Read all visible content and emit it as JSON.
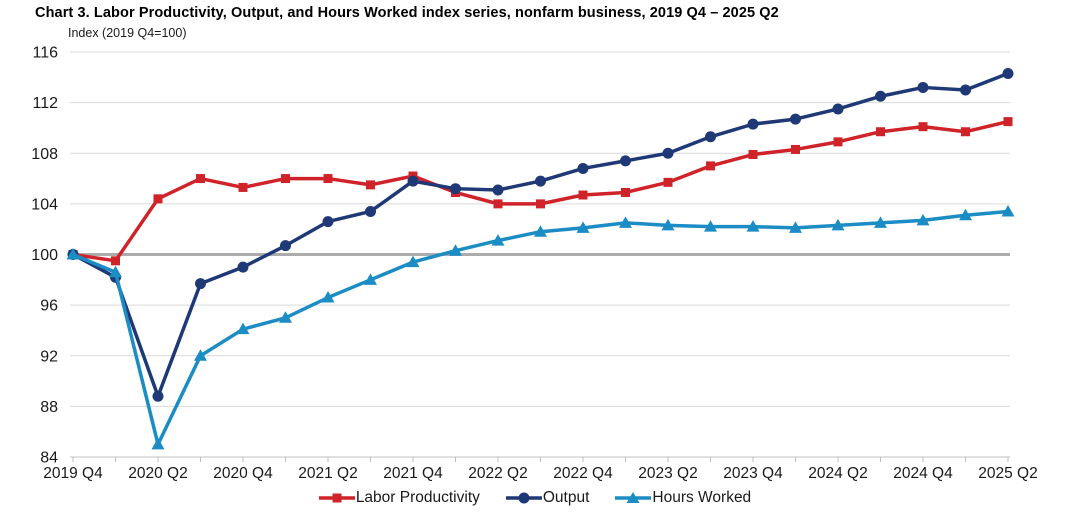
{
  "page": {
    "title": "Chart 3. Labor Productivity, Output, and Hours Worked index series, nonfarm business, 2019 Q4 – 2025 Q2",
    "axis_note": "Index (2019 Q4=100)"
  },
  "colors": {
    "labor_productivity": "#D02329",
    "output": "#1F3876",
    "hours_worked": "#1B8CC4",
    "gridline": "#D9D9D9",
    "axis": "#BFBFBF",
    "reference_line": "#ACACAC",
    "text": "#1A1A1A",
    "background": "#FFFFFF"
  },
  "chart_data": {
    "type": "line",
    "title": "Chart 3. Labor Productivity, Output, and Hours Worked index series, nonfarm business, 2019 Q4 – 2025 Q2",
    "xlabel": "",
    "ylabel": "Index (2019 Q4=100)",
    "ylim": [
      84,
      116
    ],
    "ytick_step": 4,
    "yticks": [
      84,
      88,
      92,
      96,
      100,
      104,
      108,
      112,
      116
    ],
    "grid": true,
    "legend_position": "bottom",
    "reference_line": 100,
    "quarters": [
      "2019 Q4",
      "2020 Q1",
      "2020 Q2",
      "2020 Q3",
      "2020 Q4",
      "2021 Q1",
      "2021 Q2",
      "2021 Q3",
      "2021 Q4",
      "2022 Q1",
      "2022 Q2",
      "2022 Q3",
      "2022 Q4",
      "2023 Q1",
      "2023 Q2",
      "2023 Q3",
      "2023 Q4",
      "2024 Q1",
      "2024 Q2",
      "2024 Q3",
      "2024 Q4",
      "2025 Q1",
      "2025 Q2"
    ],
    "x_tick_labels": [
      "2019 Q4",
      "2020 Q2",
      "2020 Q4",
      "2021 Q2",
      "2021 Q4",
      "2022 Q2",
      "2022 Q4",
      "2023 Q2",
      "2023 Q4",
      "2024 Q2",
      "2024 Q4",
      "2025 Q2"
    ],
    "series": [
      {
        "name": "Labor Productivity",
        "marker": "square",
        "color": "#D02329",
        "values": [
          100,
          99.5,
          104.4,
          106.0,
          105.3,
          106.0,
          106.0,
          105.5,
          106.2,
          104.9,
          104.0,
          104.0,
          104.7,
          104.9,
          105.7,
          107.0,
          107.9,
          108.3,
          108.9,
          109.7,
          110.1,
          109.7,
          110.5
        ]
      },
      {
        "name": "Output",
        "marker": "circle",
        "color": "#1F3876",
        "values": [
          100,
          98.2,
          88.8,
          97.7,
          99.0,
          100.7,
          102.6,
          103.4,
          105.8,
          105.2,
          105.1,
          105.8,
          106.8,
          107.4,
          108.0,
          109.3,
          110.3,
          110.7,
          111.5,
          112.5,
          113.2,
          113.0,
          114.3
        ]
      },
      {
        "name": "Hours Worked",
        "marker": "triangle",
        "color": "#1B8CC4",
        "values": [
          100,
          98.6,
          85.0,
          92.0,
          94.1,
          95.0,
          96.6,
          98.0,
          99.4,
          100.3,
          101.1,
          101.8,
          102.1,
          102.5,
          102.3,
          102.2,
          102.2,
          102.1,
          102.3,
          102.5,
          102.7,
          103.1,
          103.4
        ]
      }
    ]
  }
}
